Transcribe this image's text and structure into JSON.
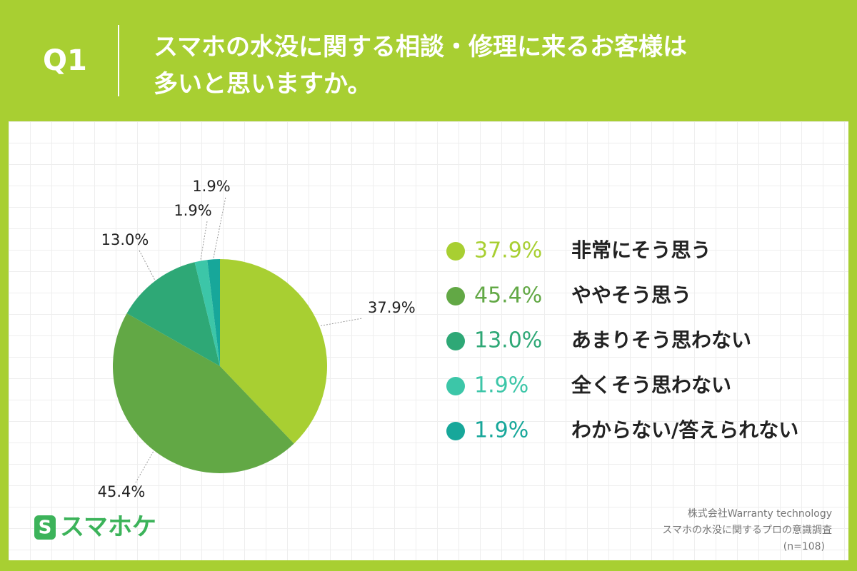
{
  "header": {
    "question": "Q1",
    "title": [
      "スマホの水没に関する相談・修理に来るお客様は",
      "多いと思いますか。"
    ]
  },
  "chart_data": {
    "type": "pie",
    "categories": [
      "非常にそう思う",
      "ややそう思う",
      "あまりそう思わない",
      "全くそう思わない",
      "わからない/答えられない"
    ],
    "values": [
      37.9,
      45.4,
      13.0,
      1.9,
      1.9
    ],
    "value_labels": [
      "37.9%",
      "45.4%",
      "13.0%",
      "1.9%",
      "1.9%"
    ],
    "colors": [
      "#a8cf32",
      "#62a845",
      "#2ea876",
      "#3cc6a8",
      "#17a79a"
    ]
  },
  "footer": {
    "logo": "スマホケ",
    "notes": [
      "株式会社Warranty technology",
      "スマホの水没に関するプロの意識調査",
      "(n=108)"
    ]
  }
}
